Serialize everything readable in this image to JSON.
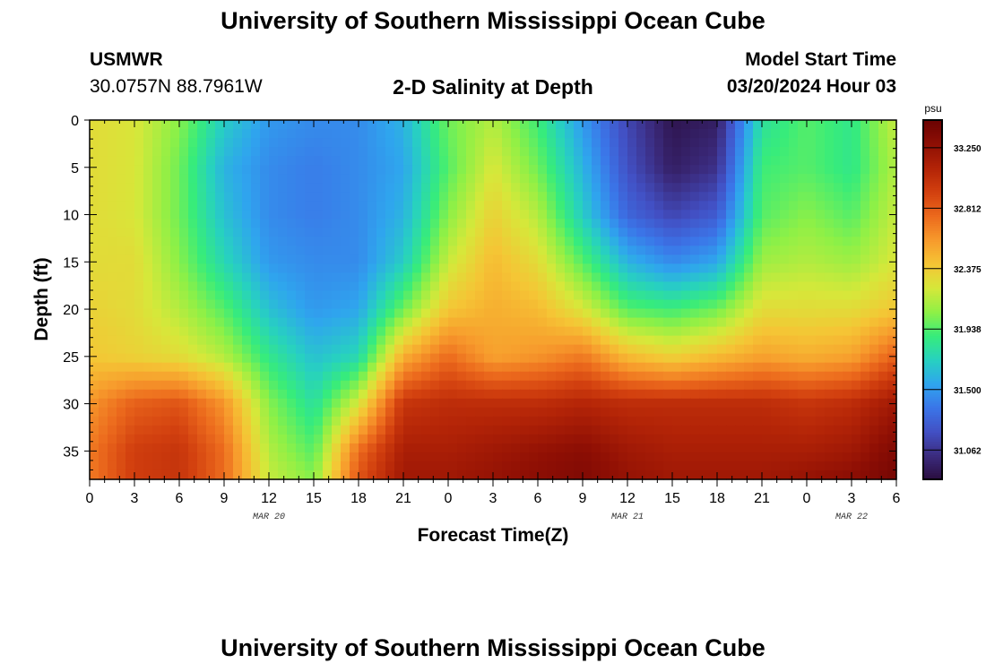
{
  "header": {
    "title": "University of Southern Mississippi Ocean Cube",
    "station": "USMWR",
    "coords": "30.0757N  88.7961W",
    "subtitle": "2-D Salinity at Depth",
    "model_start_label": "Model Start Time",
    "model_start_value": "03/20/2024 Hour 03"
  },
  "footer": {
    "title": "University of Southern Mississippi Ocean Cube"
  },
  "chart_data": {
    "type": "heatmap",
    "title": "2-D Salinity at Depth",
    "xlabel": "Forecast Time(Z)",
    "ylabel": "Depth (ft)",
    "x_range_hours": [
      0,
      54
    ],
    "y_range_ft": [
      0,
      38
    ],
    "x_ticks": [
      {
        "hour": 0,
        "label": "0"
      },
      {
        "hour": 3,
        "label": "3"
      },
      {
        "hour": 6,
        "label": "6"
      },
      {
        "hour": 9,
        "label": "9"
      },
      {
        "hour": 12,
        "label": "12"
      },
      {
        "hour": 15,
        "label": "15"
      },
      {
        "hour": 18,
        "label": "18"
      },
      {
        "hour": 21,
        "label": "21"
      },
      {
        "hour": 24,
        "label": "0"
      },
      {
        "hour": 27,
        "label": "3"
      },
      {
        "hour": 30,
        "label": "6"
      },
      {
        "hour": 33,
        "label": "9"
      },
      {
        "hour": 36,
        "label": "12"
      },
      {
        "hour": 39,
        "label": "15"
      },
      {
        "hour": 42,
        "label": "18"
      },
      {
        "hour": 45,
        "label": "21"
      },
      {
        "hour": 48,
        "label": "0"
      },
      {
        "hour": 51,
        "label": "3"
      },
      {
        "hour": 54,
        "label": "6"
      }
    ],
    "y_ticks": [
      0,
      5,
      10,
      15,
      20,
      25,
      30,
      35
    ],
    "date_labels": [
      {
        "hour": 12,
        "label": "MAR 20"
      },
      {
        "hour": 36,
        "label": "MAR 21"
      },
      {
        "hour": 51,
        "label": "MAR 22"
      }
    ],
    "colorbar": {
      "unit": "psu",
      "min": 30.85,
      "max": 33.45,
      "ticks": [
        31.062,
        31.5,
        31.938,
        32.375,
        32.812,
        33.25
      ],
      "tick_labels": [
        "31.062",
        "31.500",
        "31.938",
        "32.375",
        "32.812",
        "33.250"
      ],
      "colors": [
        "#2a0d3e",
        "#3b2b7e",
        "#4250c4",
        "#3b75e8",
        "#2fa5ee",
        "#27d1c0",
        "#37ec7b",
        "#8ff046",
        "#d6e83a",
        "#f5c535",
        "#f79a2c",
        "#ec6a1d",
        "#d2400f",
        "#b32407",
        "#8f0f04",
        "#6b0303"
      ]
    },
    "depth_rows_ft": [
      0,
      5,
      10,
      15,
      20,
      25,
      30,
      35,
      38
    ],
    "time_cols_hour": [
      0,
      3,
      6,
      9,
      12,
      15,
      18,
      21,
      24,
      27,
      30,
      33,
      36,
      39,
      42,
      45,
      48,
      51,
      54
    ],
    "salinity_psu": [
      [
        32.3,
        32.25,
        32.05,
        31.7,
        31.5,
        31.45,
        31.45,
        31.6,
        32.0,
        32.15,
        31.9,
        31.5,
        31.15,
        30.9,
        30.95,
        31.8,
        31.95,
        31.85,
        32.2
      ],
      [
        32.3,
        32.25,
        32.0,
        31.6,
        31.45,
        31.4,
        31.45,
        31.55,
        31.95,
        32.25,
        32.0,
        31.6,
        31.2,
        30.95,
        31.05,
        31.9,
        31.95,
        31.85,
        32.15
      ],
      [
        32.3,
        32.25,
        32.0,
        31.65,
        31.45,
        31.4,
        31.45,
        31.6,
        32.05,
        32.35,
        32.15,
        31.7,
        31.3,
        31.15,
        31.25,
        31.95,
        32.05,
        31.95,
        32.2
      ],
      [
        32.3,
        32.3,
        32.05,
        31.75,
        31.5,
        31.45,
        31.45,
        31.7,
        32.2,
        32.45,
        32.3,
        31.95,
        31.6,
        31.45,
        31.55,
        32.1,
        32.15,
        32.1,
        32.25
      ],
      [
        32.35,
        32.3,
        32.15,
        31.95,
        31.65,
        31.5,
        31.55,
        32.0,
        32.4,
        32.5,
        32.45,
        32.25,
        31.95,
        31.9,
        32.0,
        32.3,
        32.3,
        32.3,
        32.4
      ],
      [
        32.4,
        32.35,
        32.3,
        32.15,
        31.85,
        31.65,
        31.75,
        32.5,
        32.75,
        32.55,
        32.6,
        32.7,
        32.45,
        32.35,
        32.45,
        32.55,
        32.5,
        32.55,
        32.8
      ],
      [
        32.6,
        32.8,
        32.85,
        32.6,
        32.05,
        31.8,
        32.25,
        33.0,
        33.05,
        33.05,
        33.05,
        33.1,
        33.05,
        33.05,
        33.05,
        33.05,
        33.0,
        33.05,
        33.2
      ],
      [
        32.7,
        32.95,
        33.0,
        32.75,
        32.15,
        31.95,
        32.75,
        33.15,
        33.15,
        33.2,
        33.25,
        33.3,
        33.2,
        33.15,
        33.15,
        33.15,
        33.15,
        33.2,
        33.35
      ],
      [
        32.7,
        32.95,
        33.0,
        32.75,
        32.2,
        32.05,
        32.85,
        33.2,
        33.2,
        33.25,
        33.3,
        33.35,
        33.25,
        33.2,
        33.2,
        33.2,
        33.25,
        33.3,
        33.4
      ]
    ]
  }
}
